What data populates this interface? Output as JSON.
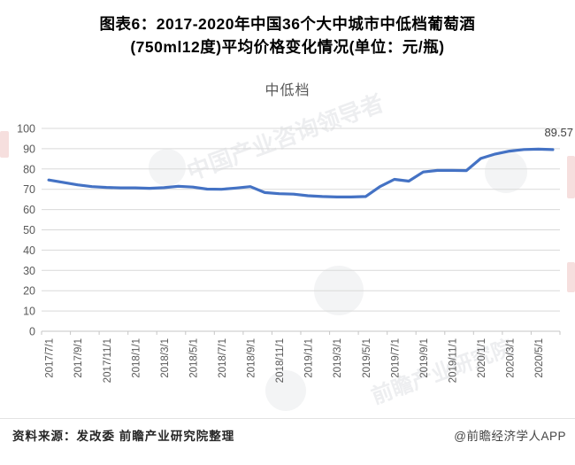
{
  "header": {
    "title_line1": "图表6：2017-2020年中国36个大中城市中低档葡萄酒",
    "title_line2": "(750ml12度)平均价格变化情况(单位：元/瓶)"
  },
  "chart_data": {
    "type": "line",
    "title": "中低档",
    "xlabel": "",
    "ylabel": "",
    "unit": "元/瓶",
    "ylim": [
      0,
      100
    ],
    "y_ticks": [
      0,
      10,
      20,
      30,
      40,
      50,
      60,
      70,
      80,
      90,
      100
    ],
    "grid": true,
    "legend_position": "none",
    "series_color": "#4472c4",
    "x": [
      "2017/7/1",
      "2017/8/1",
      "2017/9/1",
      "2017/10/1",
      "2017/11/1",
      "2017/12/1",
      "2018/1/1",
      "2018/2/1",
      "2018/3/1",
      "2018/4/1",
      "2018/5/1",
      "2018/6/1",
      "2018/7/1",
      "2018/8/1",
      "2018/9/1",
      "2018/10/1",
      "2018/11/1",
      "2018/12/1",
      "2019/1/1",
      "2019/2/1",
      "2019/3/1",
      "2019/4/1",
      "2019/5/1",
      "2019/6/1",
      "2019/7/1",
      "2019/8/1",
      "2019/9/1",
      "2019/10/1",
      "2019/11/1",
      "2019/12/1",
      "2020/1/1",
      "2020/2/1",
      "2020/3/1",
      "2020/4/1",
      "2020/5/1",
      "2020/6/1"
    ],
    "x_tick_labels": [
      "2017/7/1",
      "2017/9/1",
      "2017/11/1",
      "2018/1/1",
      "2018/3/1",
      "2018/5/1",
      "2018/7/1",
      "2018/9/1",
      "2018/11/1",
      "2019/1/1",
      "2019/3/1",
      "2019/5/1",
      "2019/7/1",
      "2019/9/1",
      "2019/11/1",
      "2020/1/1",
      "2020/3/1",
      "2020/5/1"
    ],
    "values": [
      74.6,
      73.4,
      72.2,
      71.3,
      70.9,
      70.7,
      70.7,
      70.5,
      70.8,
      71.5,
      71.1,
      70.1,
      70.0,
      70.6,
      71.3,
      68.4,
      67.8,
      67.6,
      66.8,
      66.4,
      66.2,
      66.2,
      66.4,
      71.3,
      74.9,
      74.0,
      78.5,
      79.3,
      79.3,
      79.2,
      85.2,
      87.4,
      88.8,
      89.6,
      89.8,
      89.57
    ],
    "last_point_label": "89.57"
  },
  "colors": {
    "line": "#4472c4",
    "gridline": "#d9d9d9",
    "axis": "#c6c6c6",
    "tick_label": "#595959",
    "data_label": "#3f3f3f"
  },
  "footer": {
    "source": "资料来源：发改委 前瞻产业研究院整理",
    "credit": "@前瞻经济学人APP"
  },
  "watermark": {
    "brand": "前瞻产业研究院",
    "slogan": "中国产业咨询领导者"
  }
}
